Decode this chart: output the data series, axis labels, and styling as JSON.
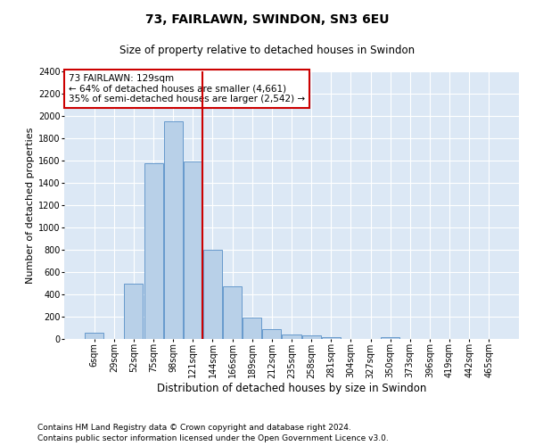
{
  "title1": "73, FAIRLAWN, SWINDON, SN3 6EU",
  "title2": "Size of property relative to detached houses in Swindon",
  "xlabel": "Distribution of detached houses by size in Swindon",
  "ylabel": "Number of detached properties",
  "footnote1": "Contains HM Land Registry data © Crown copyright and database right 2024.",
  "footnote2": "Contains public sector information licensed under the Open Government Licence v3.0.",
  "annotation_line1": "73 FAIRLAWN: 129sqm",
  "annotation_line2": "← 64% of detached houses are smaller (4,661)",
  "annotation_line3": "35% of semi-detached houses are larger (2,542) →",
  "bar_labels": [
    "6sqm",
    "29sqm",
    "52sqm",
    "75sqm",
    "98sqm",
    "121sqm",
    "144sqm",
    "166sqm",
    "189sqm",
    "212sqm",
    "235sqm",
    "258sqm",
    "281sqm",
    "304sqm",
    "327sqm",
    "350sqm",
    "373sqm",
    "396sqm",
    "419sqm",
    "442sqm",
    "465sqm"
  ],
  "bar_values": [
    55,
    0,
    500,
    1580,
    1950,
    1590,
    800,
    470,
    195,
    90,
    40,
    30,
    20,
    0,
    0,
    20,
    0,
    0,
    0,
    0,
    0
  ],
  "bar_color": "#b8d0e8",
  "bar_edge_color": "#6699cc",
  "prop_line_color": "#cc0000",
  "ylim": [
    0,
    2400
  ],
  "yticks": [
    0,
    200,
    400,
    600,
    800,
    1000,
    1200,
    1400,
    1600,
    1800,
    2000,
    2200,
    2400
  ],
  "bg_color": "#dce8f5",
  "annotation_box_edgecolor": "#cc0000",
  "grid_color": "#ffffff",
  "title1_fontsize": 10,
  "title2_fontsize": 8.5,
  "xlabel_fontsize": 8.5,
  "ylabel_fontsize": 8,
  "tick_fontsize": 7,
  "annot_fontsize": 7.5,
  "footnote_fontsize": 6.5
}
